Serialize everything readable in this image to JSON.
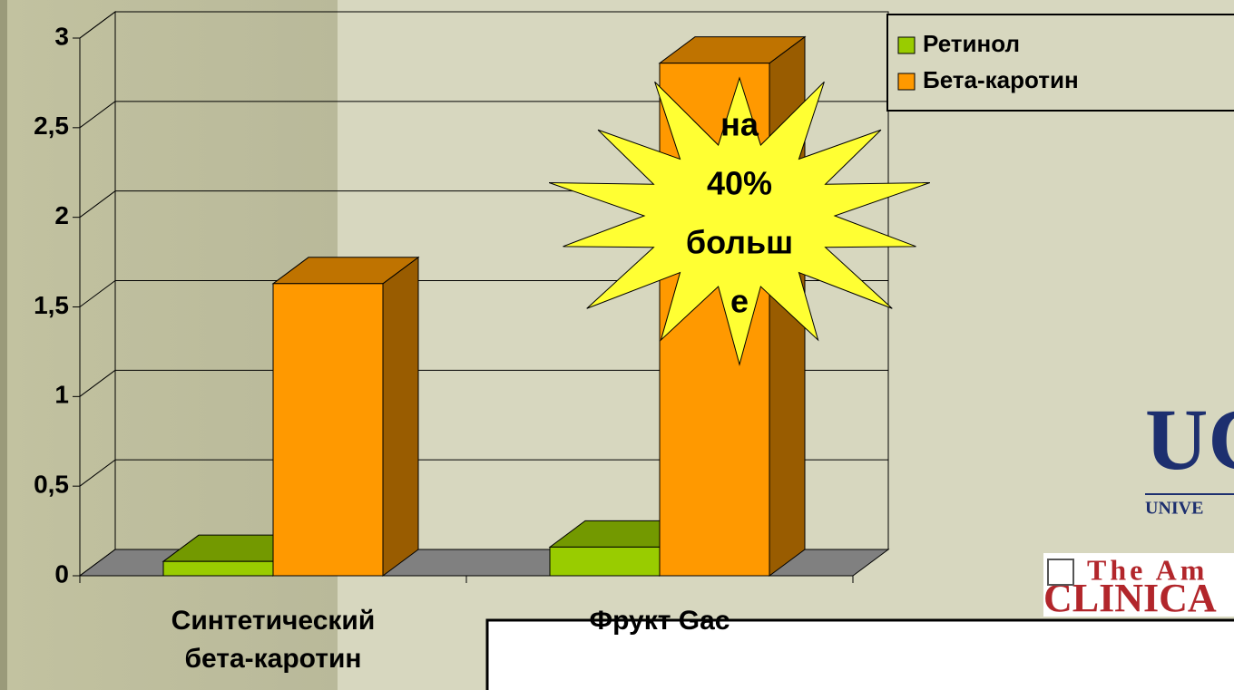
{
  "chart_data": {
    "type": "bar3d",
    "categories": [
      "Синтетический бета-каротин",
      "Фрукт Gac"
    ],
    "series": [
      {
        "name": "Ретинол",
        "color": "#99cc00",
        "values": [
          0.08,
          0.16
        ]
      },
      {
        "name": "Бета-каротин",
        "color": "#ff9900",
        "values": [
          1.63,
          2.86
        ]
      }
    ],
    "ylim": [
      0,
      3
    ],
    "yticks": [
      0,
      {
        "value": 0.5,
        "label": "0,5"
      },
      1,
      {
        "value": 1.5,
        "label": "1,5"
      },
      2,
      {
        "value": 2.5,
        "label": "2,5"
      },
      3
    ],
    "grid": true,
    "legend": "top-right",
    "annotation": [
      "на",
      "40%",
      "больш",
      "е"
    ]
  },
  "logos": {
    "university": "UC",
    "university_sub": "UNIVE",
    "journal_top": "The Am",
    "journal_name": "CLINICA"
  }
}
